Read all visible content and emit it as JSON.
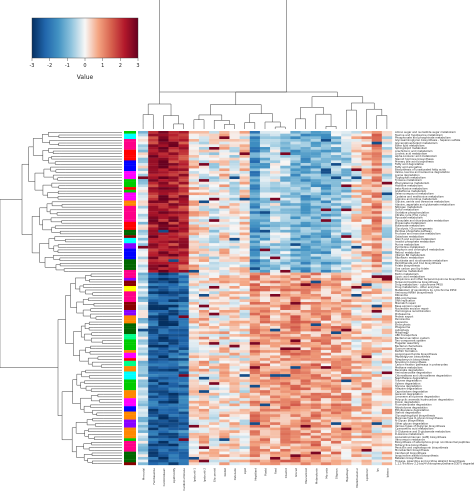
{
  "chart_data": {
    "type": "heatmap",
    "title": "",
    "xlabel": "",
    "ylabel": "",
    "legend": {
      "title": "Value",
      "ticks": [
        "-3",
        "-2",
        "-1",
        "0",
        "1",
        "2",
        "3"
      ],
      "range": [
        -3,
        3
      ],
      "colors": [
        "#053061",
        "#2166ac",
        "#4393c3",
        "#92c5de",
        "#f7f7f7",
        "#f4a582",
        "#d6604d",
        "#b2182b",
        "#67001f"
      ],
      "placement": "top-left"
    },
    "column_dendrogram": true,
    "row_dendrogram": true,
    "row_color_strip": true,
    "n_rows": 125,
    "n_cols": 25,
    "column_blocks": [
      {
        "cols": 5,
        "top_values": [
          -0.3,
          2.3,
          2.5,
          2.3,
          2.0
        ],
        "bottom_values": [
          -0.5,
          -2.3,
          -2.6,
          -2.4,
          -2.0
        ]
      },
      {
        "cols": 6,
        "top_values": [
          0.3,
          0.1,
          -0.2,
          0.3,
          -0.1,
          0.2
        ],
        "bottom_values": [
          0.2,
          0.4,
          0.1,
          0.3,
          0.2,
          0.1
        ]
      },
      {
        "cols": 10,
        "top_values": [
          -1.5,
          -0.8,
          -0.4,
          -0.6,
          -1.0,
          -1.2,
          -0.9,
          -1.1,
          -0.7,
          -0.5
        ],
        "bottom_values": [
          0.9,
          0.8,
          0.7,
          0.9,
          1.0,
          0.8,
          0.9,
          0.7,
          0.8,
          0.6
        ]
      },
      {
        "cols": 4,
        "top_values": [
          0.2,
          0.5,
          1.0,
          -0.3
        ],
        "bottom_values": [
          0.3,
          0.4,
          0.2,
          0.3
        ]
      }
    ],
    "row_split_fraction": 0.42,
    "column_labels_visible": [
      "Mercurial",
      "Fernbaseline",
      "Centrolobaum",
      "Lipidmodify",
      "Cardiomembrane",
      "Ipetoceti-1",
      "Ipetoceti-2",
      "Glucuronid",
      "Globid",
      "Ostenelio",
      "Lipid",
      "Hepidiant",
      "Plastd",
      "Fasd",
      "Cilentrd",
      "Glorud",
      "Muscarinoid",
      "Melanotonin",
      "Mucosia",
      "Oligosuc",
      "Hepatosyn",
      "Mediotransmer",
      "Lipidomm",
      "Ipc",
      "Iptasco"
    ],
    "row_labels_visible": [
      "Amino sugar and nucleotide sugar metabolism",
      "Taurine and hypotaurine metabolism",
      "Phosphonate and phosphinate metabolism",
      "Glycosaminoglycan biosynthesis - heparan sulfate",
      "Glycerophospholipid metabolism",
      "Ether lipid metabolism",
      "Sphingolipid metabolism",
      "Arachidonic acid metabolism",
      "Linoleic acid metabolism",
      "alpha-Linolenic acid metabolism",
      "Steroid hormone biosynthesis",
      "Primary bile acid biosynthesis",
      "Fatty acid degradation",
      "Fatty acid elongation",
      "Biosynthesis of unsaturated fatty acids",
      "Valine, leucine and isoleucine degradation",
      "Lysine degradation",
      "Tryptophan metabolism",
      "Tyrosine metabolism",
      "Phenylalanine metabolism",
      "Histidine metabolism",
      "beta-Alanine metabolism",
      "Glutathione metabolism",
      "Selenocompound metabolism",
      "Cysteine and methionine metabolism",
      "Arginine and proline metabolism",
      "Glycine, serine and threonine metabolism",
      "Alanine, aspartate and glutamate metabolism",
      "Nitrogen metabolism",
      "Sulfur metabolism",
      "Oxidative phosphorylation",
      "Citrate cycle (TCA cycle)",
      "Pyruvate metabolism",
      "Glyoxylate and dicarboxylate metabolism",
      "Propanoate metabolism",
      "Butanoate metabolism",
      "Glycolysis / Gluconeogenesis",
      "Pentose phosphate pathway",
      "Fructose and mannose metabolism",
      "Galactose metabolism",
      "Starch and sucrose metabolism",
      "Inositol phosphate metabolism",
      "Purine metabolism",
      "Pyrimidine metabolism",
      "Porphyrin and chlorophyll metabolism",
      "Retinol metabolism",
      "Vitamin B6 metabolism",
      "Riboflavin metabolism",
      "Nicotinate and nicotinamide metabolism",
      "Pantothenate and CoA biosynthesis",
      "Folate biosynthesis",
      "One carbon pool by folate",
      "Thiamine metabolism",
      "Biotin metabolism",
      "Lipoic acid metabolism",
      "Ubiquinone and other terpenoid-quinone biosynthesis",
      "Terpenoid backbone biosynthesis",
      "Drug metabolism - cytochrome P450",
      "Drug metabolism - other enzymes",
      "Metabolism of xenobiotics by cytochrome P450",
      "Aminoacyl-tRNA biosynthesis",
      "Ribosome",
      "RNA polymerase",
      "DNA replication",
      "Mismatch repair",
      "Base excision repair",
      "Nucleotide excision repair",
      "Homologous recombination",
      "Proteasome",
      "Protein export",
      "Peroxisome",
      "Lysosome",
      "Endocytosis",
      "Phagosome",
      "Autophagy",
      "Mitophagy",
      "ABC transporters",
      "Bacterial secretion system",
      "Two-component system",
      "Flagellar assembly",
      "Bacterial chemotaxis",
      "Quorum sensing",
      "Biofilm formation",
      "Lipopolysaccharide biosynthesis",
      "Peptidoglycan biosynthesis",
      "Streptomycin biosynthesis",
      "Novobiocin biosynthesis",
      "Carbon fixation pathways in prokaryotes",
      "Methane metabolism",
      "Benzoate degradation",
      "Aminobenzoate degradation",
      "Chloroalkane and chloroalkene degradation",
      "Naphthalene degradation",
      "Toluene degradation",
      "Xylene degradation",
      "Styrene degradation",
      "Atrazine degradation",
      "Caprolactam degradation",
      "Geraniol degradation",
      "Limonene and pinene degradation",
      "Polycyclic aromatic hydrocarbon degradation",
      "Dioxin degradation",
      "Fluorobenzoate degradation",
      "Nitrotoluene degradation",
      "Ethylbenzene degradation",
      "Steroid degradation",
      "Glycosphingolipid biosynthesis",
      "Mannose type O-glycan biosynthesis",
      "N-Glycan biosynthesis",
      "Other glycan degradation",
      "Various types of N-glycan biosynthesis",
      "Cyanoamino acid metabolism",
      "D-Glutamine and D-glutamate metabolism",
      "D-Alanine metabolism",
      "Lipoarabinomannan (LAM) biosynthesis",
      "Vancomycin resistance",
      "Biosynthesis of siderophore group nonribosomal peptides",
      "Tetracycline biosynthesis",
      "Penicillin and cephalosporin biosynthesis",
      "Monobactam biosynthesis",
      "Carotenoid biosynthesis",
      "Isoquinoline alkaloid biosynthesis",
      "Betalain biosynthesis",
      "Tropane, piperidine and pyridine alkaloid biosynthesis",
      "1,1,1-Trichloro-2,2-bis(4-chlorophenyl)ethane (DDT) degradation"
    ]
  }
}
